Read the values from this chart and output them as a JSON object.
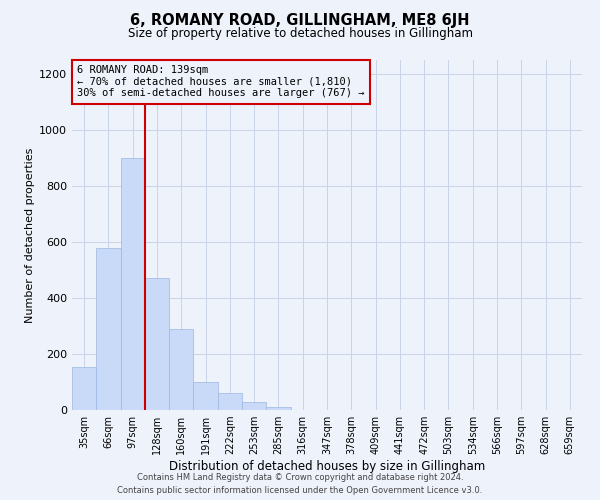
{
  "title": "6, ROMANY ROAD, GILLINGHAM, ME8 6JH",
  "subtitle": "Size of property relative to detached houses in Gillingham",
  "xlabel": "Distribution of detached houses by size in Gillingham",
  "ylabel": "Number of detached properties",
  "bar_labels": [
    "35sqm",
    "66sqm",
    "97sqm",
    "128sqm",
    "160sqm",
    "191sqm",
    "222sqm",
    "253sqm",
    "285sqm",
    "316sqm",
    "347sqm",
    "378sqm",
    "409sqm",
    "441sqm",
    "472sqm",
    "503sqm",
    "534sqm",
    "566sqm",
    "597sqm",
    "628sqm",
    "659sqm"
  ],
  "bar_values": [
    155,
    580,
    900,
    470,
    290,
    100,
    62,
    28,
    12,
    0,
    0,
    0,
    0,
    0,
    0,
    0,
    0,
    0,
    0,
    0,
    0
  ],
  "bar_color": "#c9daf8",
  "bar_edge_color": "#9db8e0",
  "vline_color": "#cc0000",
  "annotation_box_text_line1": "6 ROMANY ROAD: 139sqm",
  "annotation_box_text_line2": "← 70% of detached houses are smaller (1,810)",
  "annotation_box_text_line3": "30% of semi-detached houses are larger (767) →",
  "annotation_box_color": "#cc0000",
  "ylim": [
    0,
    1250
  ],
  "yticks": [
    0,
    200,
    400,
    600,
    800,
    1000,
    1200
  ],
  "grid_color": "#c8d4e8",
  "background_color": "#eef2fb",
  "footer_line1": "Contains HM Land Registry data © Crown copyright and database right 2024.",
  "footer_line2": "Contains public sector information licensed under the Open Government Licence v3.0."
}
